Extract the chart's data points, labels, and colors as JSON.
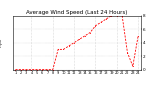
{
  "title": "Average Wind Speed (Last 24 Hours)",
  "background_color": "#ffffff",
  "line_color": "#ff0000",
  "title_fontsize": 4.0,
  "hours": [
    1,
    2,
    3,
    4,
    5,
    6,
    7,
    8,
    9,
    10,
    11,
    12,
    13,
    14,
    15,
    16,
    17,
    18,
    19,
    20,
    21,
    22,
    23,
    24
  ],
  "values": [
    0.0,
    0.0,
    0.0,
    0.0,
    0.0,
    0.0,
    0.0,
    0.0,
    3.0,
    3.0,
    3.5,
    4.0,
    4.5,
    5.0,
    5.5,
    6.5,
    7.0,
    7.5,
    8.0,
    8.0,
    8.0,
    2.5,
    0.5,
    5.0
  ],
  "ylim": [
    0,
    8
  ],
  "yticks": [
    0,
    2,
    4,
    6,
    8
  ],
  "ytick_labels": [
    "0",
    "2",
    "4",
    "6",
    "8"
  ],
  "xtick_labels": [
    "1",
    "2",
    "3",
    "4",
    "5",
    "6",
    "7",
    "8",
    "9",
    "10",
    "11",
    "12",
    "13",
    "14",
    "15",
    "16",
    "17",
    "18",
    "19",
    "20",
    "21",
    "22",
    "23",
    "24"
  ],
  "vgrid_positions": [
    4,
    8,
    12,
    16,
    20,
    24
  ],
  "grid_color": "#bbbbbb",
  "left_label": "mph"
}
